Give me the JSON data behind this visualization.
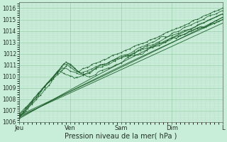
{
  "background_color": "#c8edd8",
  "grid_color_major": "#99ccaa",
  "grid_color_minor": "#bbddcc",
  "line_color": "#1a5c28",
  "ylim": [
    1006,
    1016.5
  ],
  "yticks": [
    1006,
    1007,
    1008,
    1009,
    1010,
    1011,
    1012,
    1013,
    1014,
    1015,
    1016
  ],
  "xlim": [
    0,
    96
  ],
  "x_day_labels": [
    "Jeu",
    "Ven",
    "Sam",
    "Dim",
    "L"
  ],
  "x_day_positions": [
    0,
    24,
    48,
    72,
    96
  ],
  "xlabel": "Pression niveau de la mer( hPa )",
  "xlabel_fontsize": 7,
  "tick_fontsize": 5.5,
  "figsize": [
    3.2,
    2.0
  ],
  "dpi": 100
}
